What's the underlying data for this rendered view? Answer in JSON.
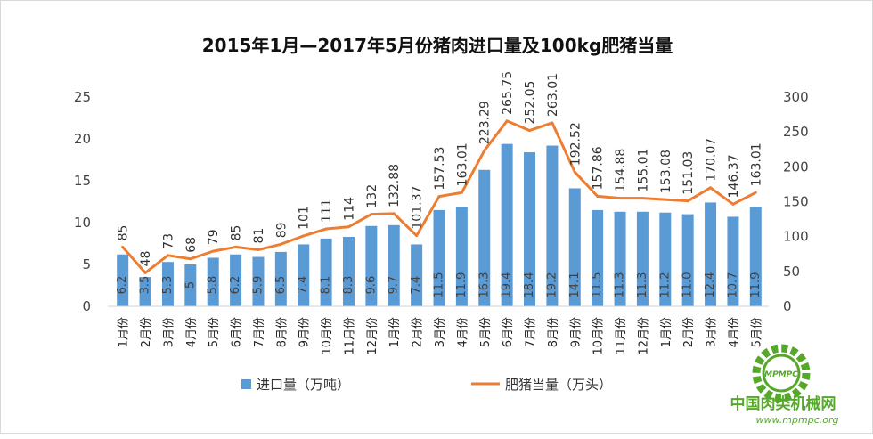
{
  "chart_data": {
    "type": "bar+line",
    "title": "2015年1月—2017年5月份猪肉进口量及100kg肥猪当量",
    "categories": [
      "1月份",
      "2月份",
      "3月份",
      "4月份",
      "5月份",
      "6月份",
      "7月份",
      "8月份",
      "9月份",
      "10月份",
      "11月份",
      "12月份",
      "1月份",
      "2月份",
      "3月份",
      "4月份",
      "5月份",
      "6月份",
      "7月份",
      "8月份",
      "9月份",
      "10月份",
      "11月份",
      "12月份",
      "1月份",
      "2月份",
      "3月份",
      "4月份",
      "5月份"
    ],
    "series": [
      {
        "name": "进口量（万吨）",
        "type": "bar",
        "axis": "left",
        "color": "#5b9bd5",
        "values": [
          6.2,
          3.5,
          5.3,
          5,
          5.8,
          6.2,
          5.9,
          6.5,
          7.4,
          8.1,
          8.3,
          9.6,
          9.7,
          7.4,
          11.5,
          11.9,
          16.3,
          19.4,
          18.4,
          19.2,
          14.1,
          11.5,
          11.3,
          11.3,
          11.2,
          11.0,
          12.4,
          10.7,
          11.9
        ],
        "labels": [
          "6.2",
          "3.5",
          "5.3",
          "5",
          "5.8",
          "6.2",
          "5.9",
          "6.5",
          "7.4",
          "8.1",
          "8.3",
          "9.6",
          "9.7",
          "7.4",
          "11.5",
          "11.9",
          "16.3",
          "19.4",
          "18.4",
          "19.2",
          "14.1",
          "11.5",
          "11.3",
          "11.3",
          "11.2",
          "11.0",
          "12.4",
          "10.7",
          "11.9"
        ]
      },
      {
        "name": "肥猪当量（万头）",
        "type": "line",
        "axis": "right",
        "color": "#ed7d31",
        "values": [
          85,
          48,
          73,
          68,
          79,
          85,
          81,
          89,
          101,
          111,
          114,
          132,
          132.88,
          101.37,
          157.53,
          163.01,
          223.29,
          265.75,
          252.05,
          263.01,
          192.52,
          157.86,
          154.88,
          155.01,
          153.08,
          151.03,
          170.07,
          146.37,
          163.01
        ],
        "labels": [
          "85",
          "48",
          "73",
          "68",
          "79",
          "85",
          "81",
          "89",
          "101",
          "111",
          "114",
          "132",
          "132.88",
          "101.37",
          "157.53",
          "163.01",
          "223.29",
          "265.75",
          "252.05",
          "263.01",
          "192.52",
          "157.86",
          "154.88",
          "155.01",
          "153.08",
          "151.03",
          "170.07",
          "146.37",
          "163.01"
        ]
      }
    ],
    "left_axis": {
      "min": 0,
      "max": 25,
      "ticks": [
        0,
        5,
        10,
        15,
        20,
        25
      ]
    },
    "right_axis": {
      "min": 0,
      "max": 300,
      "ticks": [
        0,
        50,
        100,
        150,
        200,
        250,
        300
      ]
    },
    "grid": false,
    "legend_position": "bottom"
  },
  "watermark": {
    "cn": "中国肉类机械网",
    "url": "www.mpmpc.org",
    "logo_text": "MPMPC",
    "color": "#56a82a"
  }
}
